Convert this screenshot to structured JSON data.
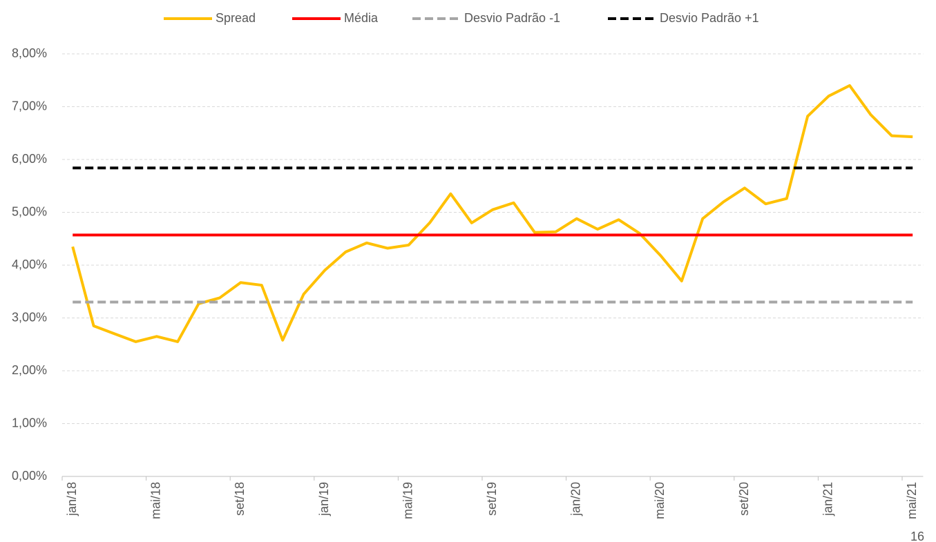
{
  "chart_data": {
    "type": "line",
    "categories": [
      "jan/18",
      null,
      null,
      null,
      "mai/18",
      null,
      null,
      null,
      "set/18",
      null,
      null,
      null,
      "jan/19",
      null,
      null,
      null,
      "mai/19",
      null,
      null,
      null,
      "set/19",
      null,
      null,
      null,
      "jan/20",
      null,
      null,
      null,
      "mai/20",
      null,
      null,
      null,
      "set/20",
      null,
      null,
      null,
      "jan/21",
      null,
      null,
      null,
      "mai/21"
    ],
    "series": [
      {
        "name": "Spread",
        "color": "#FFC000",
        "dashed": false,
        "values": [
          4.35,
          2.85,
          2.7,
          2.55,
          2.65,
          2.55,
          3.27,
          3.38,
          3.67,
          3.62,
          2.58,
          3.45,
          3.9,
          4.25,
          4.42,
          4.32,
          4.38,
          4.8,
          5.35,
          4.8,
          5.05,
          5.18,
          4.62,
          4.63,
          4.88,
          4.68,
          4.86,
          4.6,
          4.18,
          3.7,
          4.88,
          5.2,
          5.46,
          5.16,
          5.26,
          6.82,
          7.2,
          7.4,
          6.85,
          6.45,
          6.43
        ]
      },
      {
        "name": "Média",
        "color": "#FF0000",
        "dashed": false,
        "values": [
          4.57,
          4.57,
          4.57,
          4.57,
          4.57,
          4.57,
          4.57,
          4.57,
          4.57,
          4.57,
          4.57,
          4.57,
          4.57,
          4.57,
          4.57,
          4.57,
          4.57,
          4.57,
          4.57,
          4.57,
          4.57,
          4.57,
          4.57,
          4.57,
          4.57,
          4.57,
          4.57,
          4.57,
          4.57,
          4.57,
          4.57,
          4.57,
          4.57,
          4.57,
          4.57,
          4.57,
          4.57,
          4.57,
          4.57,
          4.57,
          4.57
        ]
      },
      {
        "name": "Desvio Padrão -1",
        "color": "#A6A6A6",
        "dashed": true,
        "values": [
          3.3,
          3.3,
          3.3,
          3.3,
          3.3,
          3.3,
          3.3,
          3.3,
          3.3,
          3.3,
          3.3,
          3.3,
          3.3,
          3.3,
          3.3,
          3.3,
          3.3,
          3.3,
          3.3,
          3.3,
          3.3,
          3.3,
          3.3,
          3.3,
          3.3,
          3.3,
          3.3,
          3.3,
          3.3,
          3.3,
          3.3,
          3.3,
          3.3,
          3.3,
          3.3,
          3.3,
          3.3,
          3.3,
          3.3,
          3.3,
          3.3
        ]
      },
      {
        "name": "Desvio Padrão +1",
        "color": "#000000",
        "dashed": true,
        "values": [
          5.84,
          5.84,
          5.84,
          5.84,
          5.84,
          5.84,
          5.84,
          5.84,
          5.84,
          5.84,
          5.84,
          5.84,
          5.84,
          5.84,
          5.84,
          5.84,
          5.84,
          5.84,
          5.84,
          5.84,
          5.84,
          5.84,
          5.84,
          5.84,
          5.84,
          5.84,
          5.84,
          5.84,
          5.84,
          5.84,
          5.84,
          5.84,
          5.84,
          5.84,
          5.84,
          5.84,
          5.84,
          5.84,
          5.84,
          5.84,
          5.84
        ]
      }
    ],
    "ylim": [
      0,
      8
    ],
    "yticks": [
      {
        "value": 0,
        "label": "0,00%"
      },
      {
        "value": 1,
        "label": "1,00%"
      },
      {
        "value": 2,
        "label": "2,00%"
      },
      {
        "value": 3,
        "label": "3,00%"
      },
      {
        "value": 4,
        "label": "4,00%"
      },
      {
        "value": 5,
        "label": "5,00%"
      },
      {
        "value": 6,
        "label": "6,00%"
      },
      {
        "value": 7,
        "label": "7,00%"
      },
      {
        "value": 8,
        "label": "8,00%"
      }
    ],
    "grid": true,
    "legend": "top"
  },
  "page_number": "16"
}
